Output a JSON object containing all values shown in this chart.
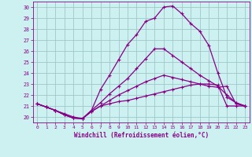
{
  "xlabel": "Windchill (Refroidissement éolien,°C)",
  "xlim": [
    -0.5,
    23.5
  ],
  "ylim": [
    19.5,
    30.5
  ],
  "xticks": [
    0,
    1,
    2,
    3,
    4,
    5,
    6,
    7,
    8,
    9,
    10,
    11,
    12,
    13,
    14,
    15,
    16,
    17,
    18,
    19,
    20,
    21,
    22,
    23
  ],
  "yticks": [
    20,
    21,
    22,
    23,
    24,
    25,
    26,
    27,
    28,
    29,
    30
  ],
  "background_color": "#cdf0f0",
  "grid_color": "#a0c8c8",
  "line_color": "#880088",
  "series": [
    [
      21.2,
      20.9,
      20.6,
      20.2,
      19.9,
      19.85,
      20.5,
      21.0,
      21.2,
      21.4,
      21.5,
      21.7,
      21.9,
      22.1,
      22.3,
      22.5,
      22.7,
      22.9,
      23.0,
      23.0,
      22.9,
      21.0,
      21.0,
      21.0
    ],
    [
      21.2,
      20.9,
      20.6,
      20.2,
      19.9,
      19.85,
      20.5,
      21.0,
      21.5,
      22.0,
      22.4,
      22.8,
      23.2,
      23.5,
      23.8,
      23.6,
      23.4,
      23.2,
      23.0,
      22.8,
      22.7,
      22.8,
      21.2,
      21.0
    ],
    [
      21.2,
      20.9,
      20.6,
      20.2,
      19.9,
      19.85,
      20.6,
      21.3,
      22.1,
      22.8,
      23.5,
      24.4,
      25.3,
      26.2,
      26.2,
      25.6,
      25.0,
      24.4,
      23.8,
      23.3,
      22.8,
      22.0,
      21.3,
      21.0
    ],
    [
      21.2,
      20.9,
      20.6,
      20.3,
      20.0,
      19.85,
      20.6,
      22.5,
      23.8,
      25.2,
      26.6,
      27.5,
      28.7,
      29.0,
      30.0,
      30.1,
      29.4,
      28.5,
      27.8,
      26.5,
      24.0,
      21.8,
      21.3,
      21.0
    ]
  ]
}
